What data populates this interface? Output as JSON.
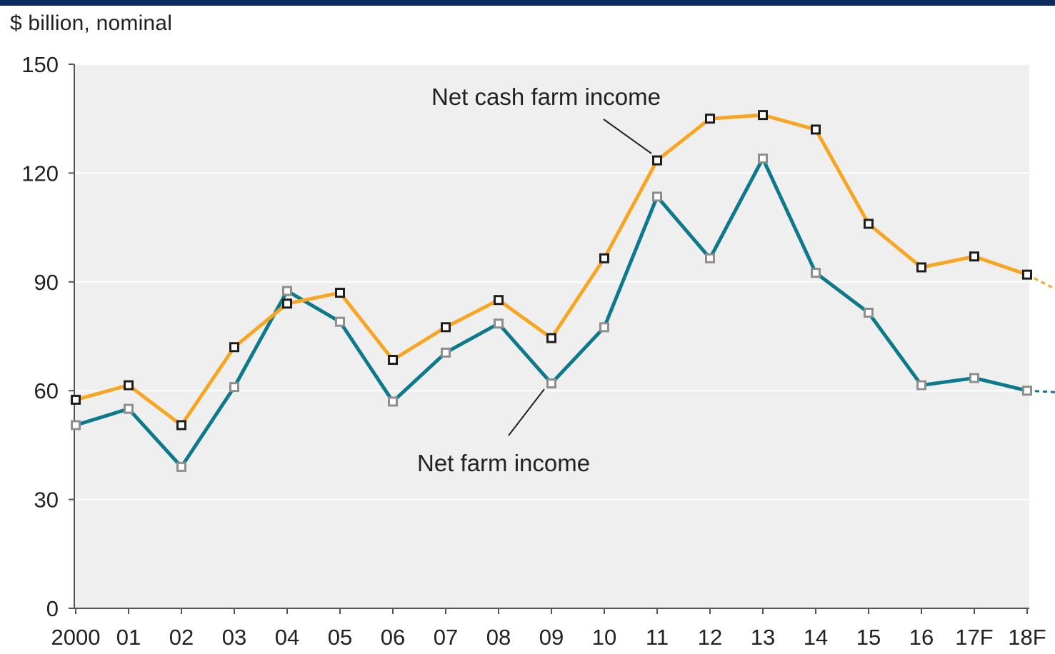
{
  "chart_data": {
    "type": "line",
    "ylabel": "$ billion, nominal",
    "ylim": [
      0,
      150
    ],
    "yticks": [
      0,
      30,
      60,
      90,
      120,
      150
    ],
    "grid": "horizontal",
    "categories": [
      "2000",
      "01",
      "02",
      "03",
      "04",
      "05",
      "06",
      "07",
      "08",
      "09",
      "10",
      "11",
      "12",
      "13",
      "14",
      "15",
      "16",
      "17F",
      "18F"
    ],
    "series": [
      {
        "name": "Net cash farm income",
        "color": "#f7a623",
        "marker_color": "#1e1e1e",
        "values": [
          57.5,
          61.5,
          50.5,
          72,
          84,
          87,
          68.5,
          77.5,
          85,
          74.5,
          96.5,
          123.5,
          135,
          136,
          132,
          106,
          94,
          97,
          92
        ]
      },
      {
        "name": "Net farm income",
        "color": "#0d7a8c",
        "marker_color": "#8e8e8e",
        "values": [
          50.5,
          55,
          39,
          61,
          87.5,
          79,
          57,
          70.5,
          78.5,
          62,
          77.5,
          113.5,
          96.5,
          124,
          92.5,
          81.5,
          61.5,
          63.5,
          60
        ]
      }
    ],
    "annotations": [
      {
        "text": "Net cash farm income",
        "series": "Net cash farm income",
        "point": "11"
      },
      {
        "text": "Net farm income",
        "series": "Net farm income",
        "point": "09"
      }
    ]
  },
  "colors": {
    "header_bar": "#0d2a5c",
    "plot_background": "#efefef",
    "gridline": "#ffffff",
    "axis": "#555555"
  }
}
